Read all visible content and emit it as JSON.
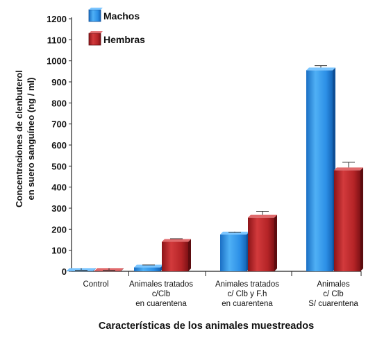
{
  "chart_data": {
    "type": "bar",
    "title": "",
    "xlabel": "Características de los animales muestreados",
    "ylabel": [
      "Concentraciones de clenbuterol",
      "en suero sanguíneo (ng / ml)"
    ],
    "ylim": [
      0,
      1200
    ],
    "yticks": [
      0,
      100,
      200,
      300,
      400,
      500,
      600,
      700,
      800,
      900,
      1000,
      1100,
      1200
    ],
    "ytick_labels": [
      "0",
      "100",
      "200",
      "300",
      "400",
      "500",
      "600",
      "700",
      "800",
      "900",
      "1000",
      "1100",
      "1200"
    ],
    "grid": false,
    "legend_position": "top-left",
    "categories": [
      [
        "Control"
      ],
      [
        "Animales tratados",
        "c/Clb",
        "en cuarentena"
      ],
      [
        "Animales tratados",
        "c/ Clb y F.h",
        "en cuarentena"
      ],
      [
        "Animales",
        "c/ Clb",
        "S/ cuarentena"
      ]
    ],
    "series": [
      {
        "name": "Machos",
        "color": "#1f86e0",
        "values": [
          2,
          18,
          175,
          955
        ],
        "errors": [
          3,
          12,
          10,
          22
        ]
      },
      {
        "name": "Hembras",
        "color": "#b22024",
        "values": [
          2,
          140,
          255,
          480
        ],
        "errors": [
          3,
          15,
          30,
          38
        ]
      }
    ]
  }
}
